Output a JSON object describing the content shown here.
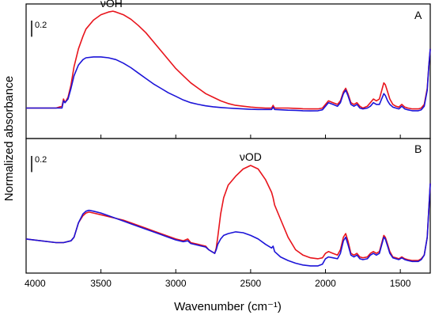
{
  "chart_data": {
    "type": "line",
    "xlabel": "Wavenumber (cm⁻¹)",
    "ylabel": "Normalized absorbance",
    "xlim": [
      4000,
      1300
    ],
    "x_reversed": true,
    "x_ticks": [
      4000,
      3500,
      3000,
      2500,
      2000,
      1500
    ],
    "y_ticks_shown": false,
    "grid": false,
    "legend": "none",
    "panels": [
      {
        "label": "A",
        "scale_bar_label": "0.2",
        "scale_bar_value": 0.2,
        "ylim": [
          0,
          0.75
        ],
        "annotations": [
          {
            "text": "νOH",
            "x": 3430,
            "y": 0.705
          }
        ],
        "series": [
          {
            "color": "#e8141c",
            "x": [
              4000,
              3800,
              3760,
              3750,
              3740,
              3720,
              3700,
              3680,
              3650,
              3620,
              3600,
              3550,
              3500,
              3450,
              3420,
              3400,
              3350,
              3300,
              3250,
              3200,
              3150,
              3100,
              3050,
              3000,
              2950,
              2900,
              2850,
              2800,
              2750,
              2700,
              2650,
              2600,
              2550,
              2500,
              2450,
              2400,
              2360,
              2350,
              2340,
              2300,
              2250,
              2200,
              2150,
              2100,
              2050,
              2020,
              2000,
              1980,
              1950,
              1920,
              1900,
              1880,
              1865,
              1850,
              1830,
              1810,
              1790,
              1770,
              1750,
              1720,
              1700,
              1680,
              1660,
              1640,
              1620,
              1610,
              1600,
              1585,
              1570,
              1550,
              1530,
              1510,
              1490,
              1470,
              1450,
              1420,
              1400,
              1380,
              1360,
              1340,
              1320,
              1310,
              1300
            ],
            "y": [
              0.17,
              0.17,
              0.18,
              0.22,
              0.2,
              0.23,
              0.3,
              0.4,
              0.5,
              0.57,
              0.61,
              0.66,
              0.69,
              0.705,
              0.71,
              0.705,
              0.69,
              0.665,
              0.63,
              0.59,
              0.54,
              0.49,
              0.44,
              0.39,
              0.35,
              0.31,
              0.28,
              0.25,
              0.23,
              0.21,
              0.195,
              0.185,
              0.18,
              0.175,
              0.172,
              0.17,
              0.17,
              0.185,
              0.17,
              0.17,
              0.17,
              0.168,
              0.166,
              0.165,
              0.165,
              0.17,
              0.19,
              0.21,
              0.2,
              0.19,
              0.21,
              0.26,
              0.28,
              0.25,
              0.2,
              0.19,
              0.2,
              0.18,
              0.17,
              0.18,
              0.2,
              0.22,
              0.21,
              0.22,
              0.28,
              0.31,
              0.3,
              0.26,
              0.22,
              0.19,
              0.18,
              0.175,
              0.19,
              0.175,
              0.17,
              0.165,
              0.165,
              0.165,
              0.17,
              0.19,
              0.28,
              0.4,
              0.5
            ]
          },
          {
            "color": "#1c14d8",
            "x": [
              4000,
              3800,
              3760,
              3750,
              3740,
              3720,
              3700,
              3680,
              3650,
              3620,
              3600,
              3550,
              3500,
              3450,
              3400,
              3350,
              3300,
              3250,
              3200,
              3150,
              3100,
              3050,
              3000,
              2950,
              2900,
              2850,
              2800,
              2750,
              2700,
              2650,
              2600,
              2550,
              2500,
              2450,
              2400,
              2360,
              2350,
              2340,
              2300,
              2250,
              2200,
              2150,
              2100,
              2050,
              2020,
              2000,
              1980,
              1950,
              1920,
              1900,
              1880,
              1865,
              1850,
              1830,
              1810,
              1790,
              1770,
              1750,
              1720,
              1700,
              1680,
              1660,
              1640,
              1620,
              1610,
              1600,
              1585,
              1570,
              1550,
              1530,
              1510,
              1490,
              1470,
              1450,
              1420,
              1400,
              1380,
              1360,
              1340,
              1320,
              1310,
              1300
            ],
            "y": [
              0.17,
              0.17,
              0.17,
              0.21,
              0.2,
              0.22,
              0.28,
              0.35,
              0.41,
              0.44,
              0.45,
              0.455,
              0.455,
              0.45,
              0.44,
              0.42,
              0.395,
              0.365,
              0.335,
              0.305,
              0.28,
              0.255,
              0.235,
              0.215,
              0.2,
              0.19,
              0.182,
              0.177,
              0.173,
              0.17,
              0.167,
              0.165,
              0.163,
              0.162,
              0.162,
              0.162,
              0.175,
              0.162,
              0.16,
              0.158,
              0.157,
              0.155,
              0.154,
              0.155,
              0.16,
              0.18,
              0.2,
              0.19,
              0.18,
              0.2,
              0.25,
              0.27,
              0.24,
              0.19,
              0.18,
              0.19,
              0.17,
              0.165,
              0.17,
              0.18,
              0.2,
              0.19,
              0.19,
              0.23,
              0.25,
              0.24,
              0.21,
              0.19,
              0.175,
              0.17,
              0.165,
              0.18,
              0.165,
              0.16,
              0.155,
              0.155,
              0.155,
              0.16,
              0.18,
              0.27,
              0.4,
              0.5
            ]
          }
        ]
      },
      {
        "label": "B",
        "scale_bar_label": "0.2",
        "scale_bar_value": 0.2,
        "ylim": [
          0,
          0.75
        ],
        "annotations": [
          {
            "text": "νOD",
            "x": 2500,
            "y": 0.6
          }
        ],
        "series": [
          {
            "color": "#e8141c",
            "x": [
              4000,
              3800,
              3750,
              3700,
              3680,
              3650,
              3620,
              3600,
              3580,
              3550,
              3500,
              3450,
              3400,
              3350,
              3300,
              3250,
              3200,
              3150,
              3100,
              3050,
              3000,
              2950,
              2920,
              2900,
              2850,
              2800,
              2780,
              2760,
              2740,
              2730,
              2720,
              2700,
              2680,
              2650,
              2600,
              2550,
              2500,
              2450,
              2400,
              2360,
              2350,
              2340,
              2300,
              2250,
              2200,
              2150,
              2100,
              2050,
              2020,
              2000,
              1980,
              1950,
              1920,
              1900,
              1880,
              1865,
              1850,
              1830,
              1810,
              1790,
              1770,
              1750,
              1720,
              1700,
              1680,
              1660,
              1640,
              1620,
              1610,
              1600,
              1585,
              1570,
              1550,
              1530,
              1510,
              1490,
              1470,
              1450,
              1420,
              1400,
              1380,
              1360,
              1340,
              1320,
              1310,
              1300
            ],
            "y": [
              0.19,
              0.17,
              0.17,
              0.18,
              0.2,
              0.28,
              0.32,
              0.335,
              0.34,
              0.335,
              0.325,
              0.315,
              0.305,
              0.295,
              0.28,
              0.265,
              0.25,
              0.235,
              0.22,
              0.205,
              0.19,
              0.18,
              0.19,
              0.17,
              0.16,
              0.15,
              0.13,
              0.12,
              0.11,
              0.14,
              0.2,
              0.33,
              0.42,
              0.49,
              0.54,
              0.58,
              0.6,
              0.58,
              0.52,
              0.45,
              0.42,
              0.38,
              0.3,
              0.2,
              0.13,
              0.1,
              0.085,
              0.08,
              0.085,
              0.11,
              0.12,
              0.11,
              0.1,
              0.13,
              0.2,
              0.22,
              0.18,
              0.11,
              0.1,
              0.11,
              0.09,
              0.085,
              0.09,
              0.11,
              0.12,
              0.11,
              0.12,
              0.18,
              0.21,
              0.2,
              0.16,
              0.12,
              0.09,
              0.085,
              0.08,
              0.09,
              0.08,
              0.075,
              0.07,
              0.07,
              0.07,
              0.08,
              0.1,
              0.2,
              0.35,
              0.5
            ]
          },
          {
            "color": "#1c14d8",
            "x": [
              4000,
              3800,
              3750,
              3700,
              3680,
              3650,
              3620,
              3600,
              3580,
              3550,
              3500,
              3450,
              3400,
              3350,
              3300,
              3250,
              3200,
              3150,
              3100,
              3050,
              3000,
              2950,
              2920,
              2900,
              2850,
              2800,
              2780,
              2760,
              2740,
              2730,
              2720,
              2700,
              2680,
              2650,
              2600,
              2550,
              2500,
              2450,
              2400,
              2360,
              2350,
              2340,
              2300,
              2250,
              2200,
              2150,
              2100,
              2050,
              2020,
              2000,
              1980,
              1950,
              1920,
              1900,
              1880,
              1865,
              1850,
              1830,
              1810,
              1790,
              1770,
              1750,
              1720,
              1700,
              1680,
              1660,
              1640,
              1620,
              1610,
              1600,
              1585,
              1570,
              1550,
              1530,
              1510,
              1490,
              1470,
              1450,
              1420,
              1400,
              1380,
              1360,
              1340,
              1320,
              1310,
              1300
            ],
            "y": [
              0.19,
              0.17,
              0.17,
              0.18,
              0.2,
              0.28,
              0.33,
              0.345,
              0.35,
              0.345,
              0.335,
              0.32,
              0.305,
              0.29,
              0.275,
              0.26,
              0.245,
              0.23,
              0.215,
              0.2,
              0.185,
              0.175,
              0.18,
              0.165,
              0.155,
              0.145,
              0.13,
              0.12,
              0.11,
              0.13,
              0.16,
              0.19,
              0.21,
              0.22,
              0.23,
              0.225,
              0.21,
              0.19,
              0.16,
              0.14,
              0.15,
              0.12,
              0.09,
              0.07,
              0.055,
              0.045,
              0.04,
              0.04,
              0.05,
              0.08,
              0.09,
              0.085,
              0.08,
              0.11,
              0.18,
              0.2,
              0.16,
              0.1,
              0.09,
              0.1,
              0.08,
              0.075,
              0.08,
              0.1,
              0.11,
              0.1,
              0.11,
              0.17,
              0.2,
              0.19,
              0.15,
              0.11,
              0.085,
              0.08,
              0.075,
              0.085,
              0.075,
              0.07,
              0.065,
              0.065,
              0.065,
              0.075,
              0.1,
              0.2,
              0.35,
              0.5
            ]
          }
        ]
      }
    ]
  }
}
